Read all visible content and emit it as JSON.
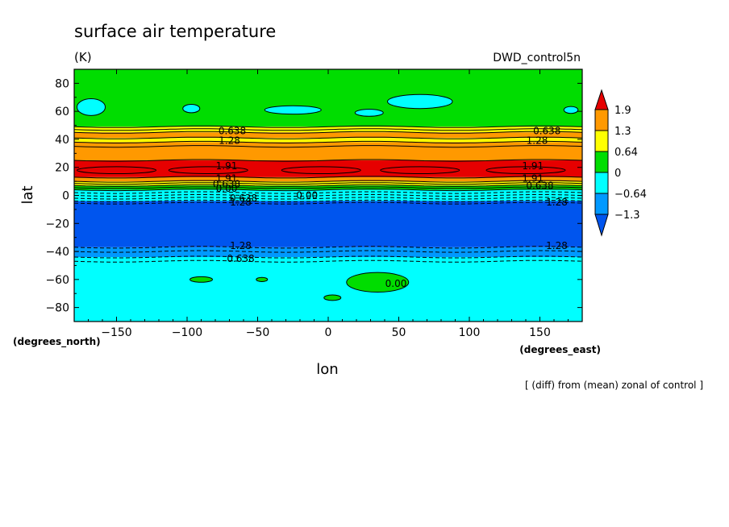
{
  "chart_data": {
    "type": "heatmap",
    "title": "surface air temperature",
    "units": "(K)",
    "dataset": "DWD_control5n",
    "xlabel": "lon",
    "ylabel": "lat",
    "x_unit_label": "(degrees_east)",
    "y_unit_label": "(degrees_north)",
    "note": "[ (diff) from (mean) zonal of control ]",
    "xlim": [
      -180,
      180
    ],
    "ylim": [
      -90,
      90
    ],
    "x_ticks": [
      -150,
      -100,
      -50,
      0,
      50,
      100,
      150
    ],
    "y_ticks": [
      -80,
      -60,
      -40,
      -20,
      0,
      20,
      40,
      60,
      80
    ],
    "x_tick_labels": [
      "−150",
      "−100",
      "−50",
      "0",
      "50",
      "100",
      "150"
    ],
    "y_tick_labels": [
      "−80",
      "−60",
      "−40",
      "−20",
      "0",
      "20",
      "40",
      "60",
      "80"
    ],
    "colorbar": {
      "levels": [
        1.9,
        1.3,
        0.64,
        0,
        -0.64,
        -1.3
      ],
      "level_labels": [
        "1.9",
        "1.3",
        "0.64",
        "0",
        "−0.64",
        "−1.3"
      ],
      "colors": [
        "#e60000",
        "#ff9900",
        "#ffff00",
        "#00dd00",
        "#00ffff",
        "#0099ff",
        "#0055ee"
      ]
    },
    "bands": [
      {
        "lat_from": 90,
        "lat_to": 49,
        "color": "#00dd00"
      },
      {
        "lat_from": 49,
        "lat_to": 45,
        "color": "#ffff00"
      },
      {
        "lat_from": 45,
        "lat_to": 41,
        "color": "#ff9900"
      },
      {
        "lat_from": 41,
        "lat_to": 38,
        "color": "#ffff00"
      },
      {
        "lat_from": 38,
        "lat_to": 25,
        "color": "#ff9900"
      },
      {
        "lat_from": 25,
        "lat_to": 13,
        "color": "#e60000"
      },
      {
        "lat_from": 13,
        "lat_to": 10,
        "color": "#ff9900"
      },
      {
        "lat_from": 10,
        "lat_to": 7,
        "color": "#ffff00"
      },
      {
        "lat_from": 7,
        "lat_to": 4,
        "color": "#00dd00"
      },
      {
        "lat_from": 4,
        "lat_to": -4,
        "color": "#00ffff"
      },
      {
        "lat_from": -4,
        "lat_to": -37,
        "color": "#0055ee"
      },
      {
        "lat_from": -37,
        "lat_to": -44,
        "color": "#0099ff"
      },
      {
        "lat_from": -44,
        "lat_to": -90,
        "color": "#00ffff"
      }
    ],
    "contours": [
      {
        "lat": 49,
        "dashed": false
      },
      {
        "lat": 47,
        "dashed": false
      },
      {
        "lat": 45,
        "dashed": false
      },
      {
        "lat": 41,
        "dashed": false
      },
      {
        "lat": 38,
        "dashed": false
      },
      {
        "lat": 35,
        "dashed": false
      },
      {
        "lat": 25,
        "dashed": false
      },
      {
        "lat": 13,
        "dashed": false
      },
      {
        "lat": 10,
        "dashed": false
      },
      {
        "lat": 8.5,
        "dashed": false
      },
      {
        "lat": 7,
        "dashed": false
      },
      {
        "lat": 5.5,
        "dashed": false
      },
      {
        "lat": 4,
        "dashed": false
      },
      {
        "lat": 2,
        "dashed": true
      },
      {
        "lat": 0,
        "dashed": true
      },
      {
        "lat": -2,
        "dashed": true
      },
      {
        "lat": -4,
        "dashed": true
      },
      {
        "lat": -5.5,
        "dashed": true
      },
      {
        "lat": -37,
        "dashed": true
      },
      {
        "lat": -40,
        "dashed": true
      },
      {
        "lat": -44,
        "dashed": true
      },
      {
        "lat": -47,
        "dashed": true
      }
    ],
    "contour_labels": [
      {
        "text": "0.638",
        "lon": -68,
        "lat": 46
      },
      {
        "text": "0.638",
        "lon": 155,
        "lat": 46
      },
      {
        "text": "1.28",
        "lon": -70,
        "lat": 39
      },
      {
        "text": "1.28",
        "lon": 148,
        "lat": 39
      },
      {
        "text": "1.91",
        "lon": -72,
        "lat": 21
      },
      {
        "text": "1.91",
        "lon": 145,
        "lat": 21
      },
      {
        "text": "1.91",
        "lon": -72,
        "lat": 12
      },
      {
        "text": "1.91",
        "lon": 145,
        "lat": 12
      },
      {
        "text": "0.638",
        "lon": -72,
        "lat": 8
      },
      {
        "text": "0.638",
        "lon": 150,
        "lat": 7
      },
      {
        "text": "0.00",
        "lon": -72,
        "lat": 5
      },
      {
        "text": "0.638",
        "lon": -60,
        "lat": -2
      },
      {
        "text": "0.00",
        "lon": -15,
        "lat": 0
      },
      {
        "text": "1.28",
        "lon": -62,
        "lat": -5
      },
      {
        "text": "1.28",
        "lon": 162,
        "lat": -5
      },
      {
        "text": "1.28",
        "lon": -62,
        "lat": -36
      },
      {
        "text": "1.28",
        "lon": 162,
        "lat": -36
      },
      {
        "text": "0.638",
        "lon": -62,
        "lat": -45
      },
      {
        "text": "0.00",
        "lon": 48,
        "lat": -63
      }
    ],
    "cyan_patches": [
      {
        "lon": -168,
        "lat": 63,
        "rx": 10,
        "ry": 6
      },
      {
        "lon": -97,
        "lat": 62,
        "rx": 6,
        "ry": 3
      },
      {
        "lon": -25,
        "lat": 61,
        "rx": 20,
        "ry": 3
      },
      {
        "lon": 29,
        "lat": 59,
        "rx": 10,
        "ry": 2.5
      },
      {
        "lon": 65,
        "lat": 67,
        "rx": 23,
        "ry": 5
      },
      {
        "lon": 172,
        "lat": 61,
        "rx": 5,
        "ry": 2.5
      }
    ],
    "green_patches": [
      {
        "lon": -90,
        "lat": -60,
        "rx": 8,
        "ry": 2
      },
      {
        "lon": -47,
        "lat": -60,
        "rx": 4,
        "ry": 1.5
      },
      {
        "lon": 35,
        "lat": -62,
        "rx": 22,
        "ry": 7
      },
      {
        "lon": 3,
        "lat": -73,
        "rx": 6,
        "ry": 2
      }
    ],
    "highs": [
      {
        "lon": -150,
        "lat": 18
      },
      {
        "lon": -85,
        "lat": 18
      },
      {
        "lon": -5,
        "lat": 18
      },
      {
        "lon": 65,
        "lat": 18
      },
      {
        "lon": 140,
        "lat": 18
      }
    ]
  }
}
